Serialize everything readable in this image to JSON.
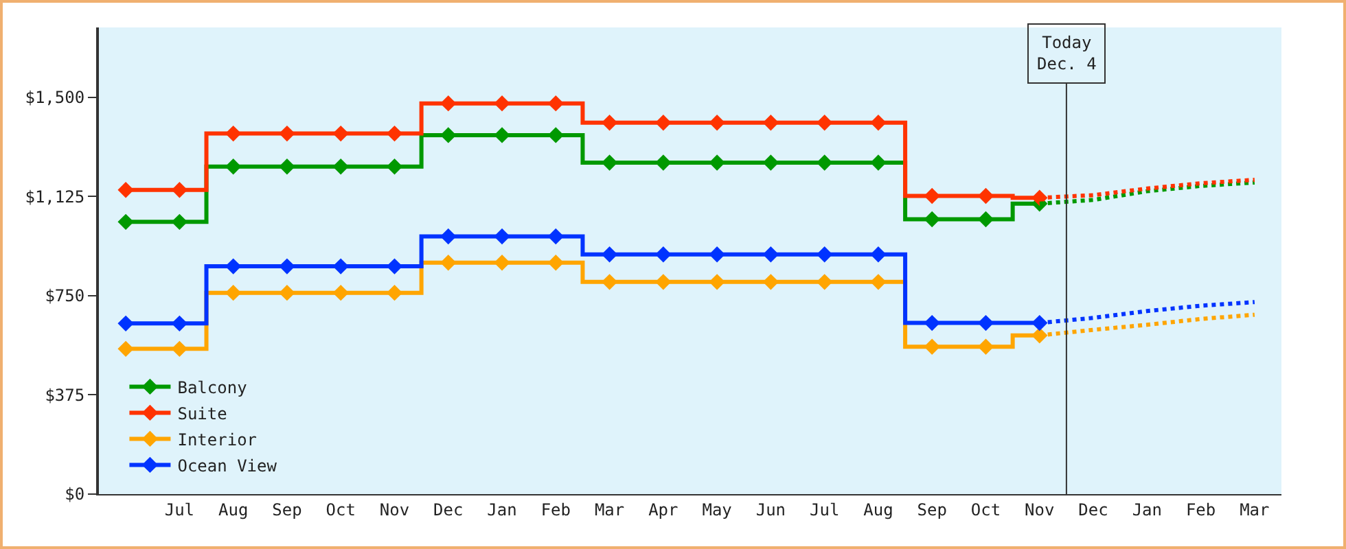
{
  "chart_data": {
    "type": "step",
    "ylim": [
      0,
      1764
    ],
    "yticks": [
      {
        "value": 0,
        "label": "$0"
      },
      {
        "value": 375,
        "label": "$375"
      },
      {
        "value": 750,
        "label": "$750"
      },
      {
        "value": 1125,
        "label": "$1,125"
      },
      {
        "value": 1500,
        "label": "$1,500"
      }
    ],
    "categories": [
      null,
      "Jul",
      "Aug",
      "Sep",
      "Oct",
      "Nov",
      "Dec",
      "Jan",
      "Feb",
      "Mar",
      "Apr",
      "May",
      "Jun",
      "Jul",
      "Aug",
      "Sep",
      "Oct",
      "Nov",
      "Dec",
      "Jan",
      "Feb",
      "Mar"
    ],
    "grid": false,
    "legend": "bottom left",
    "marker": "diamond",
    "line_style": "solid",
    "series": [
      {
        "name": "Balcony",
        "color": "#009900",
        "values": [
          1029,
          1029,
          1238,
          1238,
          1238,
          1238,
          1357,
          1357,
          1357,
          1253,
          1253,
          1253,
          1253,
          1253,
          1253,
          1039,
          1039,
          1098,
          null,
          null,
          null,
          null
        ]
      },
      {
        "name": "Suite",
        "color": "#ff3300",
        "values": [
          1150,
          1150,
          1363,
          1363,
          1363,
          1363,
          1477,
          1477,
          1477,
          1404,
          1404,
          1404,
          1404,
          1404,
          1404,
          1127,
          1127,
          1120,
          null,
          null,
          null,
          null
        ]
      },
      {
        "name": "Interior",
        "color": "#ffa500",
        "values": [
          549,
          549,
          761,
          761,
          761,
          761,
          875,
          875,
          875,
          802,
          802,
          802,
          802,
          802,
          802,
          557,
          557,
          600,
          null,
          null,
          null,
          null
        ]
      },
      {
        "name": "Ocean View",
        "color": "#0033ff",
        "values": [
          645,
          645,
          861,
          861,
          861,
          861,
          974,
          974,
          974,
          906,
          906,
          906,
          906,
          906,
          906,
          647,
          647,
          647,
          null,
          null,
          null,
          null
        ]
      },
      {
        "type": "line",
        "color": "#009900",
        "marker": "none",
        "line_style": "dotted",
        "values": [
          null,
          null,
          null,
          null,
          null,
          null,
          null,
          null,
          null,
          null,
          null,
          null,
          null,
          null,
          null,
          null,
          null,
          1098,
          1112,
          1145,
          1165,
          1178
        ]
      },
      {
        "type": "line",
        "color": "#ff3300",
        "marker": "none",
        "line_style": "dotted",
        "values": [
          null,
          null,
          null,
          null,
          null,
          null,
          null,
          null,
          null,
          null,
          null,
          null,
          null,
          null,
          null,
          null,
          null,
          1120,
          1130,
          1155,
          1175,
          1188
        ]
      },
      {
        "type": "line",
        "color": "#ffa500",
        "marker": "none",
        "line_style": "dotted",
        "values": [
          null,
          null,
          null,
          null,
          null,
          null,
          null,
          null,
          null,
          null,
          null,
          null,
          null,
          null,
          null,
          null,
          null,
          600,
          621,
          640,
          662,
          678
        ]
      },
      {
        "type": "line",
        "color": "#0033ff",
        "marker": "none",
        "line_style": "dotted",
        "values": [
          null,
          null,
          null,
          null,
          null,
          null,
          null,
          null,
          null,
          null,
          null,
          null,
          null,
          null,
          null,
          null,
          null,
          647,
          666,
          692,
          712,
          726
        ]
      }
    ],
    "annotations": [
      "Today\nDec. 4"
    ]
  }
}
